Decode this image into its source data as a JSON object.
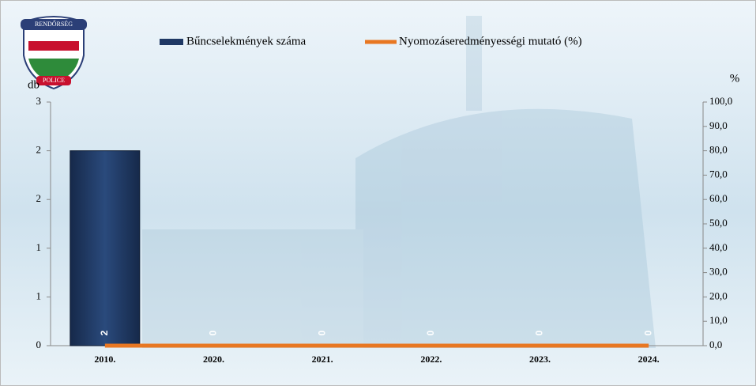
{
  "logo": {
    "top": "RENDŐRSÉG",
    "bottom": "POLICE"
  },
  "chart_data": {
    "type": "bar-line",
    "categories": [
      "2010.",
      "2020.",
      "2021.",
      "2022.",
      "2023.",
      "2024."
    ],
    "y_label": "db",
    "y2_label": "%",
    "ylim": [
      0,
      2.5
    ],
    "yticks": [
      0,
      {
        "value": 0.5,
        "label": "1"
      },
      {
        "value": 1,
        "label": "1"
      },
      {
        "value": 1.5,
        "label": "2"
      },
      {
        "value": 2,
        "label": "2"
      },
      {
        "value": 2.5,
        "label": "3"
      }
    ],
    "y2lim": [
      0,
      100
    ],
    "y2ticks": [
      {
        "value": 0,
        "label": "0,0"
      },
      {
        "value": 10,
        "label": "10,0"
      },
      {
        "value": 20,
        "label": "20,0"
      },
      {
        "value": 30,
        "label": "30,0"
      },
      {
        "value": 40,
        "label": "40,0"
      },
      {
        "value": 50,
        "label": "50,0"
      },
      {
        "value": 60,
        "label": "60,0"
      },
      {
        "value": 70,
        "label": "70,0"
      },
      {
        "value": 80,
        "label": "80,0"
      },
      {
        "value": 90,
        "label": "90,0"
      },
      {
        "value": 100,
        "label": "100,0"
      }
    ],
    "series": [
      {
        "name": "Bűncselekmények száma",
        "kind": "bar",
        "color": "#1f3864",
        "values": [
          2,
          0,
          0,
          0,
          0,
          0
        ]
      },
      {
        "name": "Nyomozáseredményességi mutató (%)",
        "kind": "line",
        "axis": "y2",
        "color": "#e87722",
        "values": [
          0,
          0,
          0,
          0,
          0,
          0
        ]
      }
    ]
  }
}
